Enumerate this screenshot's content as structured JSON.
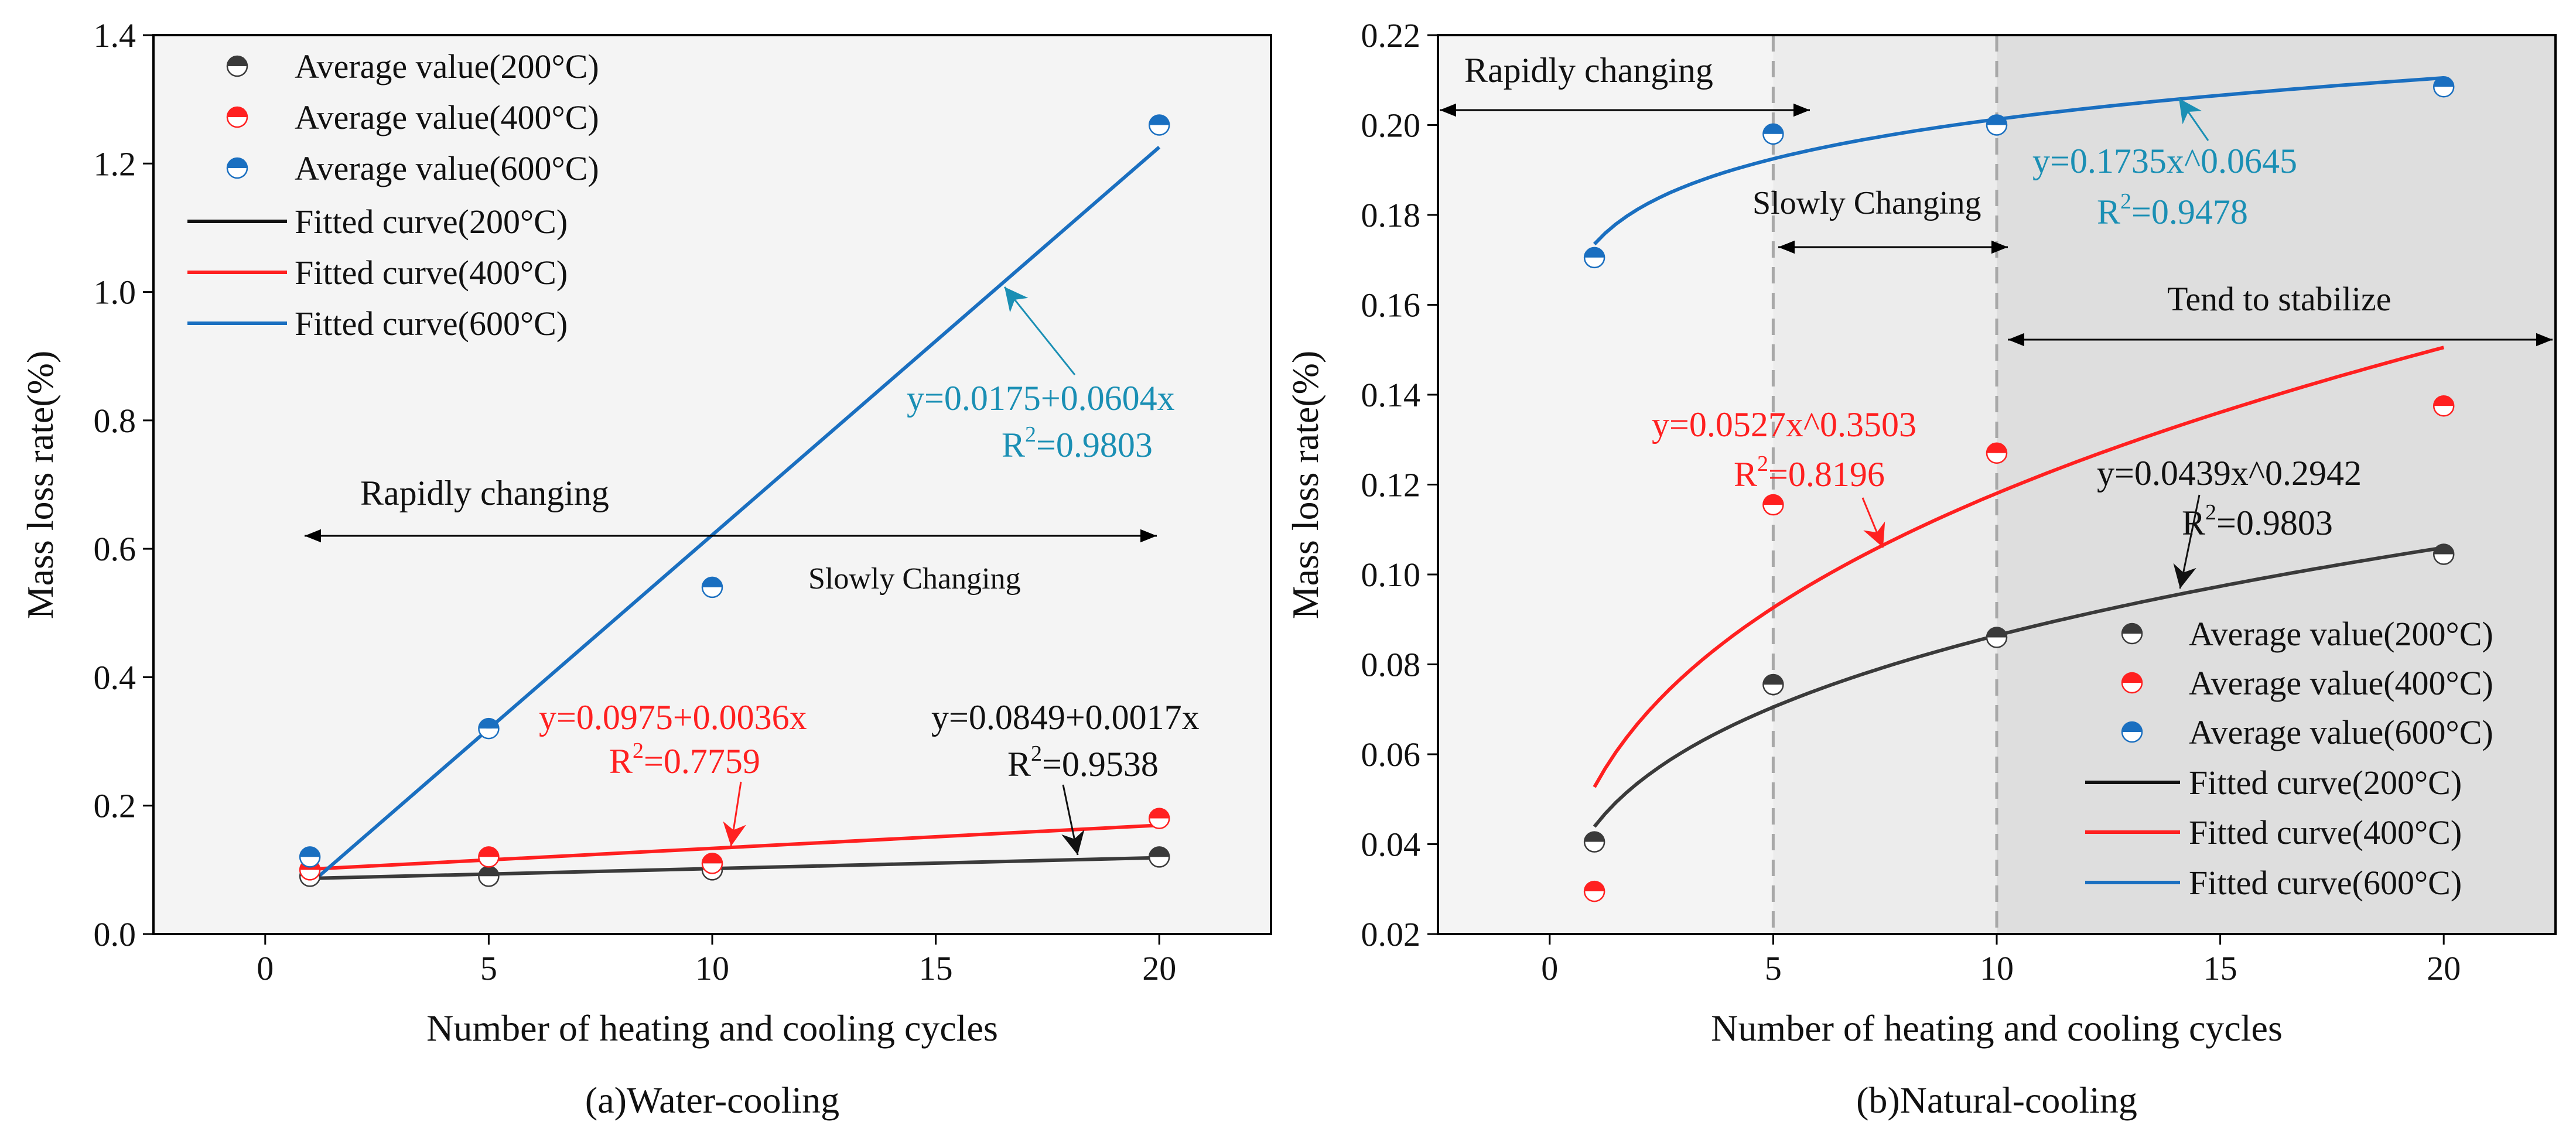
{
  "colors": {
    "c200": "#3a3a3a",
    "c400": "#ff2020",
    "c600": "#1a6fc0",
    "eq600": "#1a8fb4",
    "eq400": "#ff2020",
    "eq200": "#111111",
    "panelBg": "#f4f4f4",
    "shadeLight": "#ececec",
    "shadeDark": "#dedede"
  },
  "chart_data": [
    {
      "type": "scatter",
      "caption": "(a)Water-cooling",
      "xlabel": "Number of heating and cooling cycles",
      "ylabel": "Mass loss rate(%)",
      "xlim": [
        -2.5,
        22.5
      ],
      "ylim": [
        0,
        1.4
      ],
      "xticks": [
        "0",
        "5",
        "10",
        "15",
        "20"
      ],
      "yticks": [
        "0.0",
        "0.2",
        "0.4",
        "0.6",
        "0.8",
        "1.0",
        "1.2",
        "1.4"
      ],
      "x": [
        1,
        5,
        10,
        20
      ],
      "series": [
        {
          "name": "Average value(200°C)",
          "key": "c200",
          "values": [
            0.09,
            0.09,
            0.1,
            0.12
          ]
        },
        {
          "name": "Average value(400°C)",
          "key": "c400",
          "values": [
            0.1,
            0.12,
            0.11,
            0.18
          ]
        },
        {
          "name": "Average value(600°C)",
          "key": "c600",
          "values": [
            0.12,
            0.32,
            0.54,
            1.26
          ]
        }
      ],
      "fits": [
        {
          "name": "Fitted curve(200°C)",
          "key": "c200",
          "model": "linear",
          "a": 0.0849,
          "b": 0.0017,
          "equation": "y=0.0849+0.0017x",
          "r2": "=0.9538"
        },
        {
          "name": "Fitted curve(400°C)",
          "key": "c400",
          "model": "linear",
          "a": 0.0975,
          "b": 0.0036,
          "equation": "y=0.0975+0.0036x",
          "r2": "=0.7759"
        },
        {
          "name": "Fitted curve(600°C)",
          "key": "c600",
          "model": "linear",
          "a": 0.0175,
          "b": 0.0604,
          "equation": "y=0.0175+0.0604x",
          "r2": "=0.9803"
        }
      ],
      "annotations": {
        "rapid": "Rapidly changing",
        "slow": "Slowly Changing"
      },
      "legend": "top-left"
    },
    {
      "type": "scatter",
      "caption": "(b)Natural-cooling",
      "xlabel": "Number of heating and cooling cycles",
      "ylabel": "Mass loss rate(%)",
      "xlim": [
        -2.5,
        22.5
      ],
      "ylim": [
        0.02,
        0.22
      ],
      "xticks": [
        "0",
        "5",
        "10",
        "15",
        "20"
      ],
      "yticks": [
        "0.02",
        "0.04",
        "0.06",
        "0.08",
        "0.10",
        "0.12",
        "0.14",
        "0.16",
        "0.18",
        "0.20",
        "0.22"
      ],
      "x": [
        1,
        5,
        10,
        20
      ],
      "series": [
        {
          "name": "Average value(200°C)",
          "key": "c200",
          "values": [
            0.0405,
            0.0755,
            0.086,
            0.1045
          ]
        },
        {
          "name": "Average value(400°C)",
          "key": "c400",
          "values": [
            0.0295,
            0.1155,
            0.127,
            0.1375
          ]
        },
        {
          "name": "Average value(600°C)",
          "key": "c600",
          "values": [
            0.1705,
            0.198,
            0.2,
            0.2085
          ]
        }
      ],
      "fits": [
        {
          "name": "Fitted curve(200°C)",
          "key": "c200",
          "model": "power",
          "a": 0.0439,
          "b": 0.2942,
          "equation": "y=0.0439x^0.2942",
          "r2": "=0.9803"
        },
        {
          "name": "Fitted curve(400°C)",
          "key": "c400",
          "model": "power",
          "a": 0.0527,
          "b": 0.3503,
          "equation": "y=0.0527x^0.3503",
          "r2": "=0.8196"
        },
        {
          "name": "Fitted curve(600°C)",
          "key": "c600",
          "model": "power",
          "a": 0.1735,
          "b": 0.0645,
          "equation": "y=0.1735x^0.0645",
          "r2": "=0.9478"
        }
      ],
      "stage_boundaries": [
        5,
        10
      ],
      "annotations": {
        "rapid": "Rapidly changing",
        "slow": "Slowly Changing",
        "stable": "Tend to stabilize"
      },
      "legend": "bottom-right"
    }
  ]
}
